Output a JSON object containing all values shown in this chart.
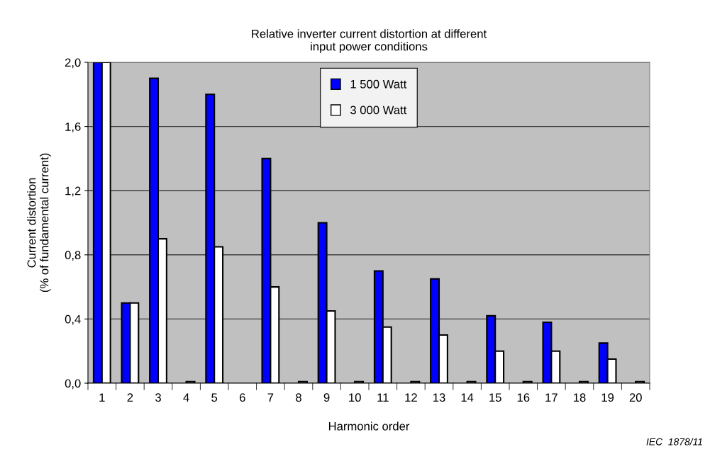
{
  "chart_data": {
    "type": "bar",
    "title": "Relative inverter current distortion at different\ninput power conditions",
    "xlabel": "Harmonic order",
    "ylabel": "Current distortion\n(% of fundamental current)",
    "categories": [
      "1",
      "2",
      "3",
      "4",
      "5",
      "6",
      "7",
      "8",
      "9",
      "10",
      "11",
      "12",
      "13",
      "14",
      "15",
      "16",
      "17",
      "18",
      "19",
      "20"
    ],
    "series": [
      {
        "name": "1 500 Watt",
        "color": "#0000ff",
        "values": [
          2.0,
          0.5,
          1.9,
          null,
          1.8,
          null,
          1.4,
          null,
          1.0,
          null,
          0.7,
          null,
          0.65,
          null,
          0.42,
          null,
          0.38,
          null,
          0.25,
          null
        ]
      },
      {
        "name": "3 000 Watt",
        "color": "#ffffff",
        "values": [
          2.0,
          0.5,
          0.9,
          0.01,
          0.85,
          null,
          0.6,
          0.01,
          0.45,
          0.01,
          0.35,
          0.01,
          0.3,
          0.01,
          0.2,
          0.01,
          0.2,
          0.01,
          0.15,
          0.01
        ]
      }
    ],
    "ylim": [
      0,
      2.0
    ],
    "yticks": [
      {
        "value": 0,
        "label": "0,0"
      },
      {
        "value": 0.4,
        "label": "0,4"
      },
      {
        "value": 0.8,
        "label": "0,8"
      },
      {
        "value": 1.2,
        "label": "1,2"
      },
      {
        "value": 1.6,
        "label": "1,6"
      },
      {
        "value": 2.0,
        "label": "2,0"
      }
    ],
    "grid": "y",
    "legend": "top",
    "annotations": [
      "IEC  1878/11"
    ]
  }
}
